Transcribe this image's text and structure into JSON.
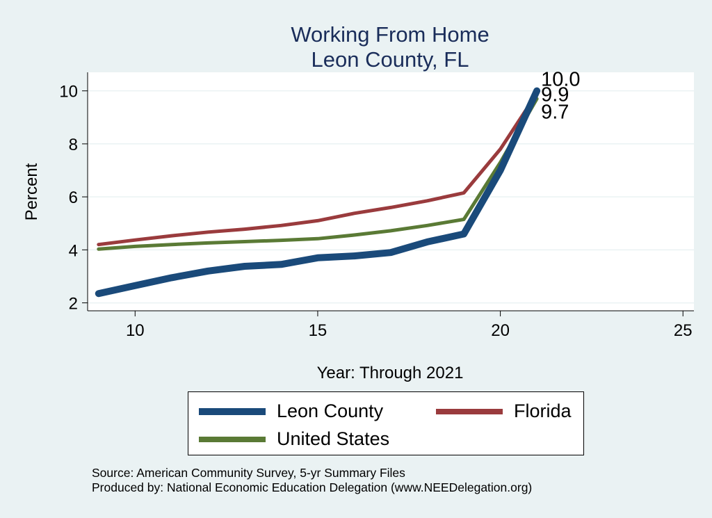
{
  "chart_data": {
    "type": "line",
    "title": [
      "Working From Home",
      "Leon County, FL"
    ],
    "xlabel": "Year: Through 2021",
    "ylabel": "Percent",
    "xlim": [
      8.7,
      25.3
    ],
    "ylim": [
      1.7,
      10.7
    ],
    "xticks": [
      10,
      15,
      20,
      25
    ],
    "yticks": [
      2,
      4,
      6,
      8,
      10
    ],
    "grid": true,
    "legend_position": "bottom",
    "series": [
      {
        "name": "Leon County",
        "color": "#1a4a7a",
        "x": [
          9,
          10,
          11,
          12,
          13,
          14,
          15,
          16,
          17,
          18,
          19,
          20,
          21
        ],
        "y": [
          2.35,
          2.65,
          2.95,
          3.2,
          3.38,
          3.45,
          3.7,
          3.77,
          3.9,
          4.3,
          4.6,
          7.0,
          10.0
        ],
        "end_label": "10.0"
      },
      {
        "name": "Florida",
        "color": "#9a3b3d",
        "x": [
          9,
          10,
          11,
          12,
          13,
          14,
          15,
          16,
          17,
          18,
          19,
          20,
          21
        ],
        "y": [
          4.2,
          4.37,
          4.53,
          4.67,
          4.78,
          4.92,
          5.1,
          5.38,
          5.6,
          5.85,
          6.15,
          7.8,
          9.9
        ],
        "end_label": "9.9"
      },
      {
        "name": "United States",
        "color": "#5a7a35",
        "x": [
          9,
          10,
          11,
          12,
          13,
          14,
          15,
          16,
          17,
          18,
          19,
          20,
          21
        ],
        "y": [
          4.03,
          4.13,
          4.2,
          4.26,
          4.31,
          4.36,
          4.42,
          4.56,
          4.72,
          4.92,
          5.15,
          7.3,
          9.7
        ],
        "end_label": "9.7"
      }
    ]
  },
  "legend": {
    "leon": "Leon County",
    "florida": "Florida",
    "us": "United States"
  },
  "footer": {
    "source": "Source: American Community Survey, 5-yr Summary Files",
    "produced": "Produced by: National Economic Education Delegation (www.NEEDelegation.org)"
  }
}
